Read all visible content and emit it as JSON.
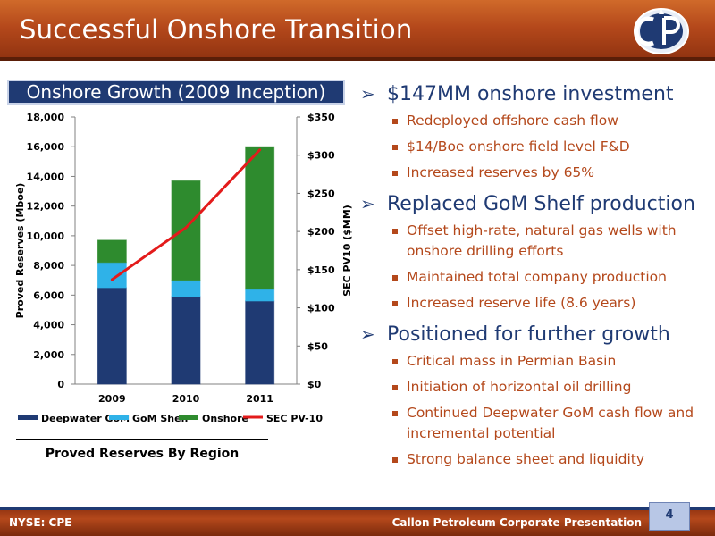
{
  "header": {
    "title": "Successful Onshore Transition"
  },
  "chart_title": "Onshore Growth (2009 Inception)",
  "chart_caption": "Proved Reserves By Region",
  "chart_data": {
    "type": "bar",
    "stacked": true,
    "categories": [
      "2009",
      "2010",
      "2011"
    ],
    "series": [
      {
        "name": "Deepwater GoM",
        "color": "#1f3a73",
        "values": [
          6500,
          5900,
          5600
        ]
      },
      {
        "name": "GoM Shelf",
        "color": "#2fb2e8",
        "values": [
          1700,
          1100,
          800
        ]
      },
      {
        "name": "Onshore",
        "color": "#2e8b2e",
        "values": [
          1500,
          6700,
          9600
        ]
      }
    ],
    "line_series": {
      "name": "SEC PV-10",
      "color": "#e31b1b",
      "axis": "right",
      "values": [
        137,
        205,
        307
      ]
    },
    "ylabel": "Proved Reserves (Mboe)",
    "y2label": "SEC PV10 ($MM)",
    "ylim": [
      0,
      18000
    ],
    "y2lim": [
      0,
      350
    ],
    "yticks": [
      "0",
      "2,000",
      "4,000",
      "6,000",
      "8,000",
      "10,000",
      "12,000",
      "14,000",
      "16,000",
      "18,000"
    ],
    "y2ticks": [
      "$0",
      "$50",
      "$100",
      "$150",
      "$200",
      "$250",
      "$300",
      "$350"
    ],
    "grid": false,
    "legend": "bottom"
  },
  "bullets": [
    {
      "text": "$147MM onshore investment",
      "sub": [
        "Redeployed offshore cash flow",
        "$14/Boe onshore field level F&D",
        "Increased reserves by 65%"
      ]
    },
    {
      "text": "Replaced GoM Shelf production",
      "sub": [
        "Offset high-rate, natural gas wells with onshore drilling efforts",
        "Maintained total company production",
        "Increased reserve life (8.6 years)"
      ]
    },
    {
      "text": "Positioned for further growth",
      "sub": [
        "Critical mass in Permian Basin",
        "Initiation of horizontal oil drilling",
        "Continued Deepwater GoM cash flow and incremental potential",
        "Strong balance sheet and liquidity"
      ]
    }
  ],
  "footer": {
    "left": "NYSE: CPE",
    "right": "Callon Petroleum Corporate Presentation",
    "page": "4"
  },
  "logo": {
    "icon": "callon-cp-logo",
    "accent": "#1f3a73",
    "brand": "#b4481b"
  }
}
